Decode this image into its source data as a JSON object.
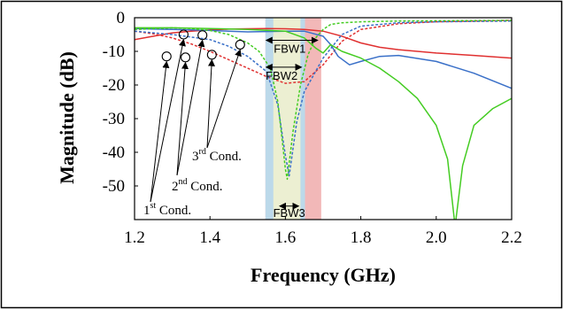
{
  "chart_data": {
    "type": "line",
    "xlabel": "Frequency  (GHz)",
    "ylabel": "Magnitude (dB)",
    "xlim": [
      1.2,
      2.2
    ],
    "ylim": [
      -60,
      0
    ],
    "x_ticks": [
      "1.2",
      "1.4",
      "1.6",
      "1.8",
      "2.0",
      "2.2"
    ],
    "y_ticks": [
      "0",
      "-10",
      "-20",
      "-30",
      "-40",
      "-50"
    ],
    "grid": false,
    "bands": [
      {
        "label": "FBW1",
        "x0": 1.547,
        "x1": 1.695,
        "color": "#f2b8b8",
        "label_y": -7.5
      },
      {
        "label": "FBW2",
        "x0": 1.547,
        "x1": 1.652,
        "color": "#bcd9ea",
        "label_y": -15.5
      },
      {
        "label": "FBW3",
        "x0": 1.568,
        "x1": 1.64,
        "color": "#ecefd2",
        "label_y": -57.8
      }
    ],
    "series": [
      {
        "color": "#e03030",
        "dash": false,
        "x": [
          1.2,
          1.25,
          1.3,
          1.35,
          1.4,
          1.45,
          1.5,
          1.55,
          1.6,
          1.65,
          1.7,
          1.75,
          1.8,
          1.85,
          1.9,
          2.0,
          2.1,
          2.2
        ],
        "y": [
          -6.5,
          -5.5,
          -4.5,
          -4,
          -3.6,
          -3.4,
          -3.3,
          -3.2,
          -3.3,
          -3.5,
          -4,
          -5.5,
          -7.5,
          -8.8,
          -9.5,
          -10.5,
          -11.2,
          -12
        ]
      },
      {
        "color": "#e03030",
        "dash": true,
        "x": [
          1.2,
          1.25,
          1.3,
          1.35,
          1.4,
          1.45,
          1.5,
          1.55,
          1.6,
          1.65,
          1.7,
          1.75,
          1.8,
          1.9,
          2.0,
          2.1,
          2.2
        ],
        "y": [
          -4,
          -4.8,
          -6,
          -7.8,
          -10,
          -12.5,
          -15,
          -17.5,
          -19.5,
          -19,
          -14,
          -7,
          -3.5,
          -1.8,
          -1.2,
          -1,
          -0.8
        ]
      },
      {
        "color": "#3a70c8",
        "dash": false,
        "x": [
          1.2,
          1.25,
          1.3,
          1.35,
          1.4,
          1.45,
          1.5,
          1.55,
          1.6,
          1.65,
          1.7,
          1.72,
          1.74,
          1.77,
          1.8,
          1.85,
          1.9,
          2.0,
          2.1,
          2.2
        ],
        "y": [
          -3.2,
          -3.4,
          -3.5,
          -3.6,
          -3.8,
          -4,
          -4.2,
          -4.1,
          -4,
          -4,
          -5.5,
          -8,
          -11.5,
          -14,
          -13,
          -11.5,
          -11.2,
          -13,
          -16.5,
          -21
        ]
      },
      {
        "color": "#3a70c8",
        "dash": true,
        "x": [
          1.2,
          1.3,
          1.4,
          1.45,
          1.5,
          1.55,
          1.58,
          1.6,
          1.61,
          1.63,
          1.65,
          1.7,
          1.75,
          1.8,
          1.9,
          2.0,
          2.2
        ],
        "y": [
          -4,
          -5,
          -6.5,
          -8.5,
          -11.5,
          -16,
          -26,
          -41,
          -47,
          -31,
          -22,
          -12,
          -5,
          -2.5,
          -1.5,
          -1.2,
          -1
        ]
      },
      {
        "color": "#44cc22",
        "dash": false,
        "x": [
          1.2,
          1.3,
          1.4,
          1.5,
          1.6,
          1.65,
          1.68,
          1.7,
          1.72,
          1.75,
          1.8,
          1.85,
          1.9,
          1.95,
          2.0,
          2.03,
          2.05,
          2.07,
          2.1,
          2.15,
          2.2
        ],
        "y": [
          -3,
          -3,
          -3.2,
          -3.5,
          -4,
          -6,
          -9,
          -10.5,
          -8,
          -10,
          -12,
          -15,
          -19,
          -24,
          -32,
          -42,
          -62,
          -44,
          -32,
          -27,
          -24
        ]
      },
      {
        "color": "#44cc22",
        "dash": true,
        "x": [
          1.2,
          1.3,
          1.35,
          1.4,
          1.45,
          1.5,
          1.53,
          1.56,
          1.58,
          1.6,
          1.605,
          1.62,
          1.64,
          1.66,
          1.68,
          1.7,
          1.72,
          1.75,
          1.8,
          1.9,
          2.0,
          2.2
        ],
        "y": [
          -3.5,
          -3,
          -3.2,
          -3.8,
          -5,
          -7.5,
          -10,
          -15,
          -25,
          -45,
          -48,
          -34,
          -20,
          -11,
          -6,
          -3.5,
          -2,
          -1.5,
          -1.2,
          -1,
          -0.9,
          -0.8
        ]
      }
    ],
    "annotations": {
      "c1": {
        "text": "1",
        "sup": "st",
        "rest": " Cond."
      },
      "c2": {
        "text": "2",
        "sup": "nd",
        "rest": " Cond."
      },
      "c3": {
        "text": "3",
        "sup": "rd",
        "rest": " Cond."
      }
    },
    "markers": [
      {
        "x": 1.285,
        "y": -11.5
      },
      {
        "x": 1.33,
        "y": -5
      },
      {
        "x": 1.335,
        "y": -11.8
      },
      {
        "x": 1.38,
        "y": -5.2
      },
      {
        "x": 1.405,
        "y": -11
      },
      {
        "x": 1.48,
        "y": -8
      }
    ]
  }
}
